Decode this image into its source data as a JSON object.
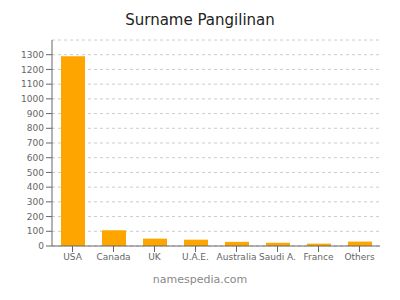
{
  "chart_data": {
    "type": "bar",
    "title": "Surname Pangilinan",
    "categories": [
      "USA",
      "Canada",
      "UK",
      "U.A.E.",
      "Australia",
      "Saudi A.",
      "France",
      "Others"
    ],
    "values": [
      1290,
      107,
      50,
      43,
      28,
      22,
      16,
      30
    ],
    "color": "#FFA500",
    "ylim": [
      0,
      1400
    ],
    "yticks": [
      0,
      100,
      200,
      300,
      400,
      500,
      600,
      700,
      800,
      900,
      1000,
      1100,
      1200,
      1300
    ],
    "grid": true,
    "annotations": [
      "namespedia.com"
    ]
  }
}
